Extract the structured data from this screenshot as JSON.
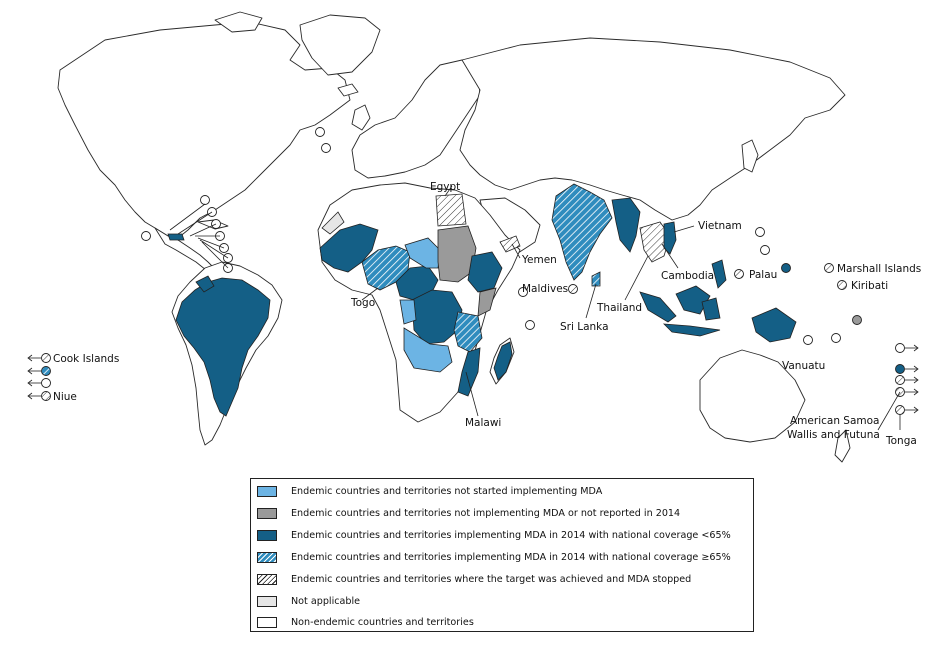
{
  "colors": {
    "not_started": "#6cb4e4",
    "not_implementing": "#9a9a9a",
    "below_65": "#145f86",
    "above_65": "hatched #2f8cbe",
    "target_achieved": "hatched white",
    "not_applicable": "#e6e6e6",
    "non_endemic": "#ffffff"
  },
  "legend": {
    "items": [
      {
        "category": "not_started",
        "label": "Endemic countries and territories not started implementing MDA"
      },
      {
        "category": "not_implementing",
        "label": "Endemic countries and territories not implementing MDA or not reported in 2014"
      },
      {
        "category": "below_65",
        "label": "Endemic countries and territories implementing MDA in 2014 with national coverage <65%"
      },
      {
        "category": "above_65",
        "label": "Endemic countries and territories implementing MDA in 2014 with national coverage ≥65%"
      },
      {
        "category": "target_achieved",
        "label": "Endemic countries and territories where the target was achieved and MDA stopped"
      },
      {
        "category": "not_applicable",
        "label": "Not applicable"
      },
      {
        "category": "non_endemic",
        "label": "Non-endemic countries and territories"
      }
    ]
  },
  "labels": {
    "egypt": "Egypt",
    "yemen": "Yemen",
    "togo": "Togo",
    "malawi": "Malawi",
    "maldives": "Maldives",
    "sri_lanka": "Sri Lanka",
    "thailand": "Thailand",
    "cambodia": "Cambodia",
    "vietnam": "Vietnam",
    "palau": "Palau",
    "marshall_islands": "Marshall Islands",
    "kiribati": "Kiribati",
    "vanuatu": "Vanuatu",
    "american_samoa": "American Samoa",
    "wallis_futuna": "Wallis and Futuna",
    "tonga": "Tonga",
    "cook_islands": "Cook Islands",
    "niue": "Niue"
  }
}
